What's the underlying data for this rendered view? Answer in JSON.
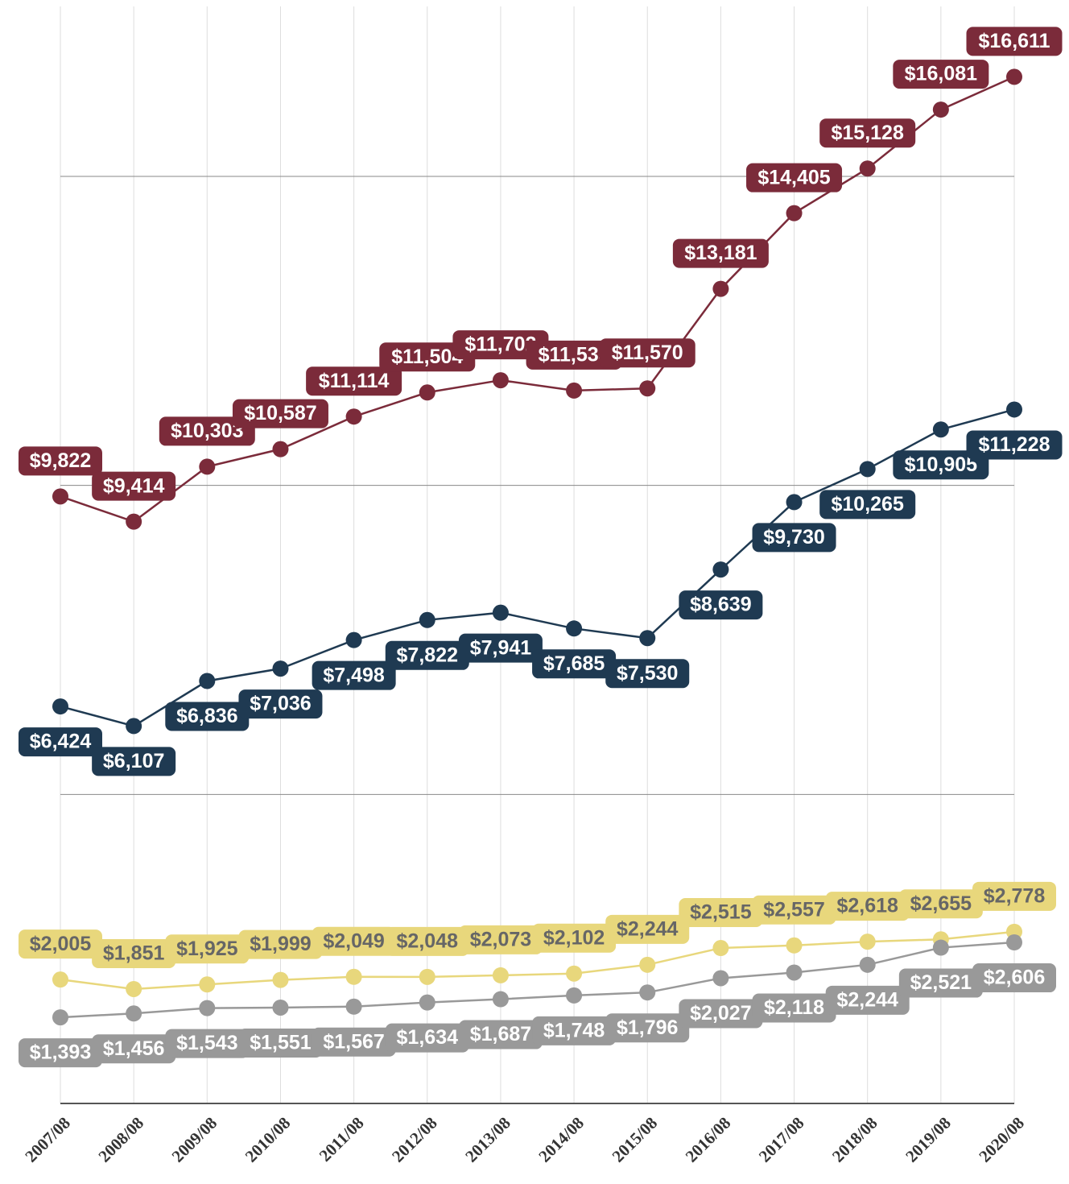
{
  "chart_data": {
    "type": "line",
    "categories": [
      "2007/08",
      "2008/08",
      "2009/08",
      "2010/08",
      "2011/08",
      "2012/08",
      "2013/08",
      "2014/08",
      "2015/08",
      "2016/08",
      "2017/08",
      "2018/08",
      "2019/08",
      "2020/08"
    ],
    "ylim": [
      0,
      17750
    ],
    "yticks": [
      0,
      5000,
      10000,
      15000
    ],
    "grid": true,
    "series": [
      {
        "color": "#7b2b3a",
        "values": [
          9822,
          9414,
          10303,
          10587,
          11114,
          11504,
          11702,
          11535,
          11570,
          13181,
          14405,
          15128,
          16081,
          16611
        ],
        "value_labels": [
          "$9,822",
          "$9,414",
          "$10,303",
          "$10,587",
          "$11,114",
          "$11,504",
          "$11,702",
          "$11,535",
          "$11,570",
          "$13,181",
          "$14,405",
          "$15,128",
          "$16,081",
          "$16,611"
        ]
      },
      {
        "color": "#1f3a52",
        "values": [
          6424,
          6107,
          6836,
          7036,
          7498,
          7822,
          7941,
          7685,
          7530,
          8639,
          9730,
          10265,
          10905,
          11228
        ],
        "value_labels": [
          "$6,424",
          "$6,107",
          "$6,836",
          "$7,036",
          "$7,498",
          "$7,822",
          "$7,941",
          "$7,685",
          "$7,530",
          "$8,639",
          "$9,730",
          "$10,265",
          "$10,905",
          "$11,228"
        ]
      },
      {
        "color": "#e8d77c",
        "values": [
          2005,
          1851,
          1925,
          1999,
          2049,
          2048,
          2073,
          2102,
          2244,
          2515,
          2557,
          2618,
          2655,
          2778
        ],
        "value_labels": [
          "$2,005",
          "$1,851",
          "$1,925",
          "$1,999",
          "$2,049",
          "$2,048",
          "$2,073",
          "$2,102",
          "$2,244",
          "$2,515",
          "$2,557",
          "$2,618",
          "$2,655",
          "$2,778"
        ]
      },
      {
        "color": "#999999",
        "values": [
          1393,
          1456,
          1543,
          1551,
          1567,
          1634,
          1687,
          1748,
          1796,
          2027,
          2118,
          2244,
          2521,
          2606
        ],
        "value_labels": [
          "$1,393",
          "$1,456",
          "$1,543",
          "$1,551",
          "$1,567",
          "$1,634",
          "$1,687",
          "$1,748",
          "$1,796",
          "$2,027",
          "$2,118",
          "$2,244",
          "$2,521",
          "$2,606"
        ]
      }
    ]
  }
}
